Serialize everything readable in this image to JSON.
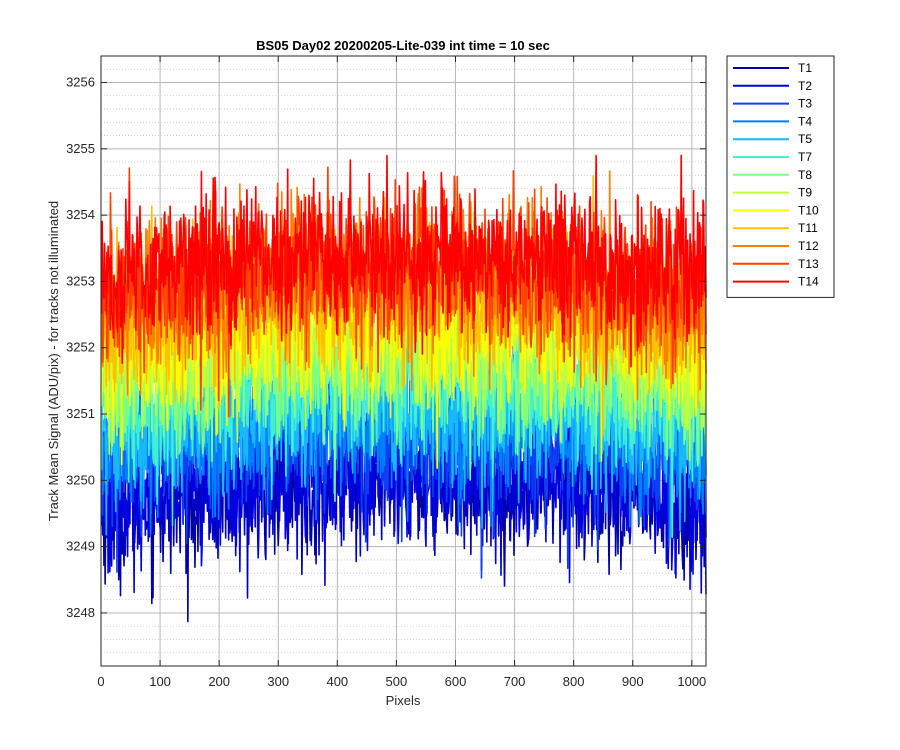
{
  "chart_data": {
    "type": "line",
    "title": "BS05 Day02 20200205-Lite-039 int time = 10 sec",
    "xlabel": "Pixels",
    "ylabel": "Track Mean Signal (ADU/pix) - for tracks not illuminated",
    "xlim": [
      0,
      1024
    ],
    "ylim": [
      3247.2,
      3256.4
    ],
    "xticks": [
      0,
      100,
      200,
      300,
      400,
      500,
      600,
      700,
      800,
      900,
      1000
    ],
    "yticks": [
      3248,
      3249,
      3250,
      3251,
      3252,
      3253,
      3254,
      3255,
      3256
    ],
    "grid": true,
    "minor_grid_y": true,
    "legend_position": "outside-top-right",
    "x_points": 1024,
    "series": [
      {
        "name": "T1",
        "color": "#0000a8",
        "mean": 3249.7,
        "spread": 0.55
      },
      {
        "name": "T2",
        "color": "#0000e0",
        "mean": 3249.8,
        "spread": 0.55
      },
      {
        "name": "T3",
        "color": "#0c40f0",
        "mean": 3250.4,
        "spread": 0.55
      },
      {
        "name": "T4",
        "color": "#0080ff",
        "mean": 3250.6,
        "spread": 0.55
      },
      {
        "name": "T5",
        "color": "#18b8ff",
        "mean": 3250.8,
        "spread": 0.55
      },
      {
        "name": "T7",
        "color": "#40f0d0",
        "mean": 3251.2,
        "spread": 0.55
      },
      {
        "name": "T8",
        "color": "#80ff80",
        "mean": 3251.5,
        "spread": 0.55
      },
      {
        "name": "T9",
        "color": "#c0ff40",
        "mean": 3251.8,
        "spread": 0.55
      },
      {
        "name": "T10",
        "color": "#ffff00",
        "mean": 3252.1,
        "spread": 0.55
      },
      {
        "name": "T11",
        "color": "#ffc000",
        "mean": 3252.4,
        "spread": 0.55
      },
      {
        "name": "T12",
        "color": "#ff8000",
        "mean": 3252.7,
        "spread": 0.55
      },
      {
        "name": "T13",
        "color": "#ff4000",
        "mean": 3252.9,
        "spread": 0.55
      },
      {
        "name": "T14",
        "color": "#ff0000",
        "mean": 3253.1,
        "spread": 0.55
      }
    ]
  }
}
